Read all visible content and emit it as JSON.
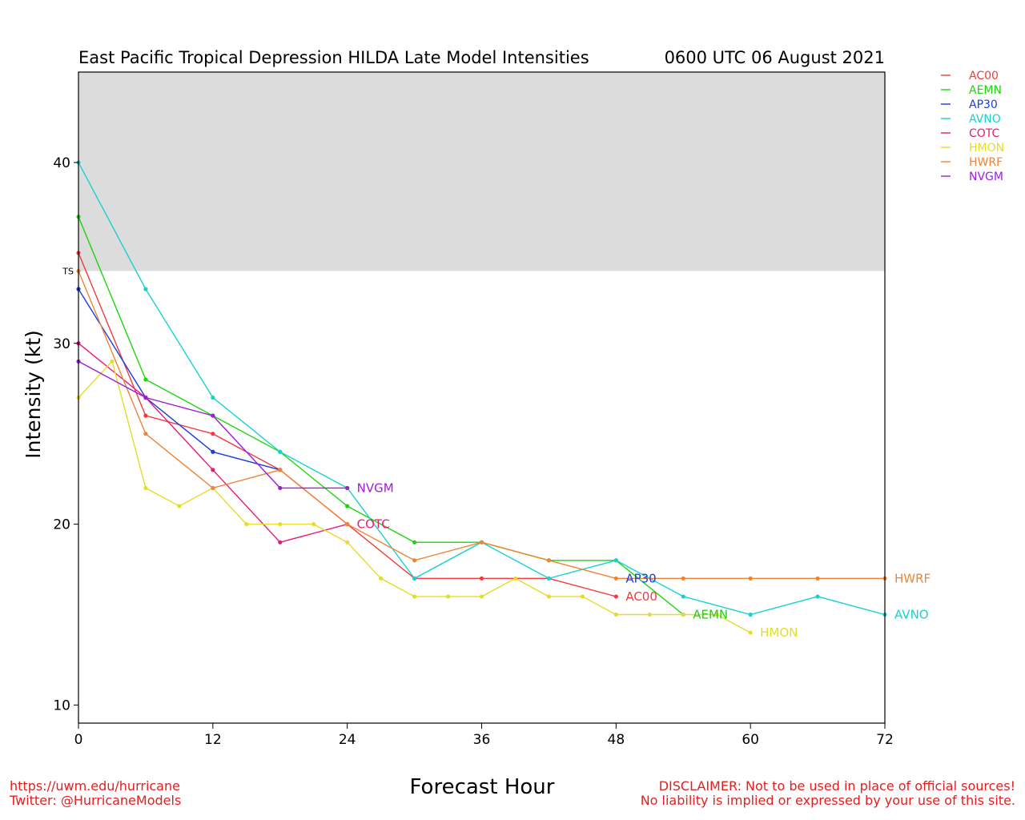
{
  "page": {
    "footer": {
      "left_lines": [
        "https://uwm.edu/hurricane",
        "Twitter: @HurricaneModels"
      ],
      "right_lines": [
        "DISCLAIMER: Not to be used in place of official sources!",
        "No liability is implied or expressed by your use of this site."
      ]
    }
  },
  "chart_data": {
    "type": "line",
    "title": "East Pacific Tropical Depression HILDA Late Model Intensities",
    "subtitle": "0600 UTC 06 August 2021",
    "xlabel": "Forecast Hour",
    "ylabel": "Intensity (kt)",
    "xlim": [
      0,
      72
    ],
    "ylim": [
      9,
      45
    ],
    "xticks": [
      0,
      12,
      24,
      36,
      48,
      60,
      72
    ],
    "yticks": [
      10,
      20,
      30,
      40
    ],
    "threshold": {
      "label": "TS",
      "value": 34,
      "color": "#dcdcdc"
    },
    "grid": false,
    "legend_position": "right-outside",
    "series": [
      {
        "name": "AC00",
        "color": "#f03c3c",
        "x": [
          0,
          6,
          12,
          18,
          24,
          30,
          36,
          42,
          48
        ],
        "y": [
          35,
          26,
          25,
          23,
          20,
          17,
          17,
          17,
          16
        ]
      },
      {
        "name": "AEMN",
        "color": "#1cd60c",
        "x": [
          0,
          6,
          12,
          18,
          24,
          30,
          36,
          42,
          48,
          54
        ],
        "y": [
          37,
          28,
          26,
          24,
          21,
          19,
          19,
          18,
          18,
          15
        ]
      },
      {
        "name": "AP30",
        "color": "#1a3ce0",
        "x": [
          0,
          6,
          12,
          18
        ],
        "y": [
          33,
          27,
          24,
          23
        ]
      },
      {
        "name": "AVNO",
        "color": "#19d1d1",
        "x": [
          0,
          6,
          12,
          18,
          24,
          30,
          36,
          42,
          48,
          54,
          60,
          66,
          72
        ],
        "y": [
          40,
          33,
          27,
          24,
          22,
          17,
          19,
          17,
          18,
          16,
          15,
          16,
          15
        ]
      },
      {
        "name": "COTC",
        "color": "#e81a78",
        "x": [
          0,
          6,
          12,
          18,
          24
        ],
        "y": [
          30,
          27,
          23,
          19,
          20
        ]
      },
      {
        "name": "HMON",
        "color": "#e6dc2a",
        "x": [
          0,
          3,
          6,
          9,
          12,
          15,
          18,
          21,
          24,
          27,
          30,
          33,
          36,
          39,
          42,
          45,
          48,
          51,
          54,
          57,
          60
        ],
        "y": [
          27,
          29,
          22,
          21,
          22,
          20,
          20,
          20,
          19,
          17,
          16,
          16,
          16,
          17,
          16,
          16,
          15,
          15,
          15,
          15,
          14
        ]
      },
      {
        "name": "HWRF",
        "color": "#ee8436",
        "x": [
          0,
          6,
          12,
          18,
          24,
          30,
          36,
          42,
          48,
          54,
          60,
          66,
          72
        ],
        "y": [
          34,
          25,
          22,
          23,
          20,
          18,
          19,
          18,
          17,
          17,
          17,
          17,
          17
        ]
      },
      {
        "name": "NVGM",
        "color": "#9e1ed8",
        "x": [
          0,
          6,
          12,
          18,
          24
        ],
        "y": [
          29,
          27,
          26,
          22,
          22
        ]
      }
    ],
    "end_labels": [
      {
        "series": "NVGM",
        "text": "NVGM"
      },
      {
        "series": "COTC",
        "text": "COTC"
      },
      {
        "series": "AP30",
        "text": "AP30",
        "at_x": 48,
        "at_y": 17
      },
      {
        "series": "AC00",
        "text": "AC00"
      },
      {
        "series": "AEMN",
        "text": "AEMN"
      },
      {
        "series": "HMON",
        "text": "HMON"
      },
      {
        "series": "HWRF",
        "text": "HWRF"
      },
      {
        "series": "AVNO",
        "text": "AVNO"
      }
    ]
  }
}
